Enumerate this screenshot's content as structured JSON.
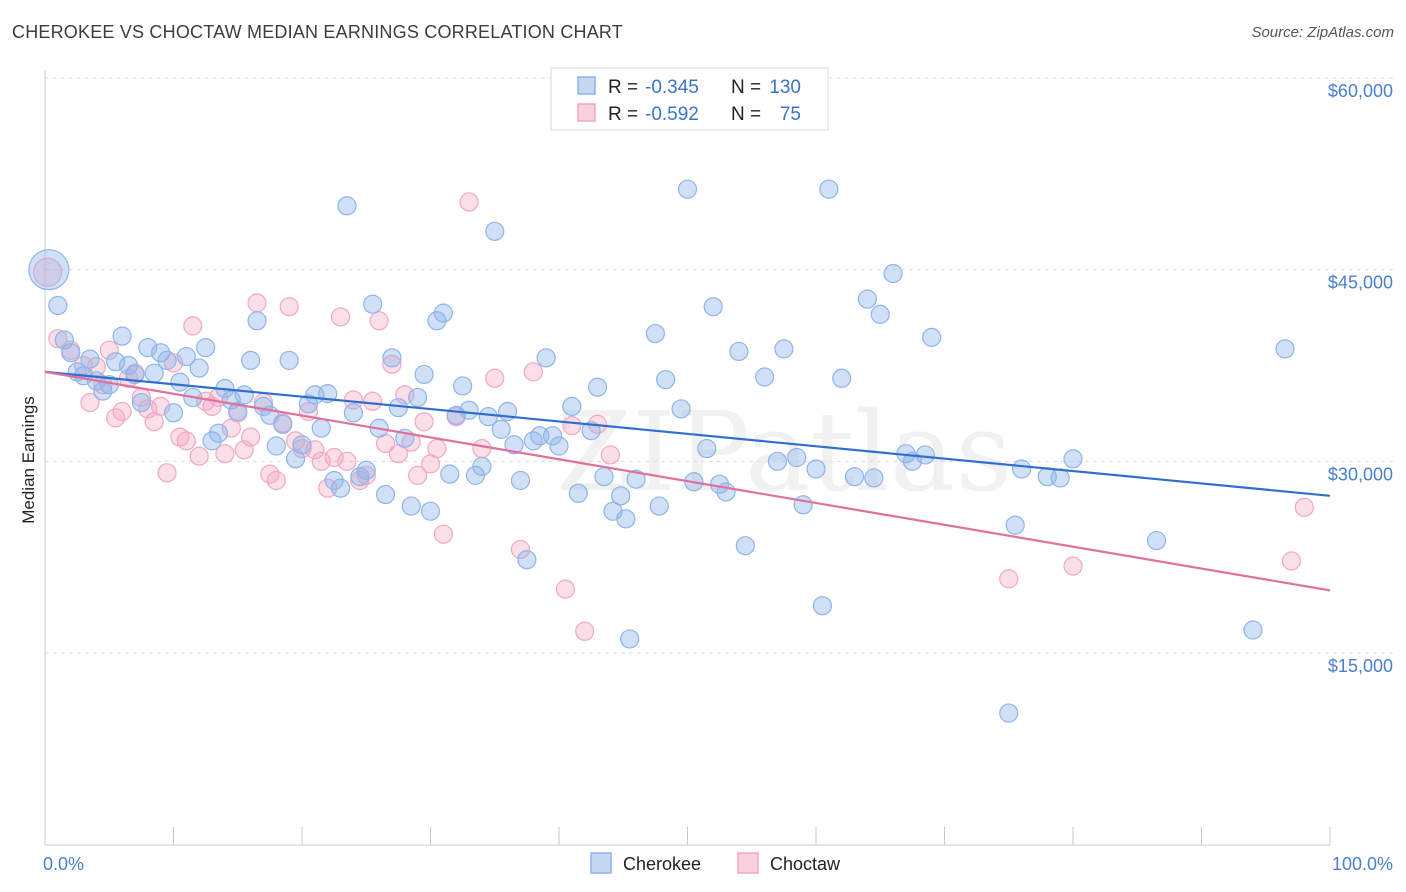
{
  "title": "CHEROKEE VS CHOCTAW MEDIAN EARNINGS CORRELATION CHART",
  "source": "Source: ZipAtlas.com",
  "watermark": "ZIPatlas",
  "colors": {
    "cherokee": "#8fb4ea",
    "choctaw": "#f3a7c2",
    "cherokee_line": "#2f6fce",
    "choctaw_line": "#e0719a"
  },
  "legend": {
    "r_label": "R =",
    "n_label": "N =",
    "cherokee": {
      "r": "-0.345",
      "n": "130"
    },
    "choctaw": {
      "r": "-0.592",
      "n": "75"
    }
  },
  "bottom_legend": [
    "Cherokee",
    "Choctaw"
  ],
  "chart_data": {
    "type": "scatter",
    "title": "CHEROKEE VS CHOCTAW MEDIAN EARNINGS CORRELATION CHART",
    "xlabel": "",
    "ylabel": "Median Earnings",
    "xlim": [
      0,
      100
    ],
    "ylim": [
      0,
      62500
    ],
    "x_tick_labels": [
      "0.0%",
      "100.0%"
    ],
    "y_ticks": [
      15000,
      30000,
      45000,
      60000
    ],
    "y_tick_labels": [
      "$15,000",
      "$30,000",
      "$45,000",
      "$60,000"
    ],
    "grid": true,
    "series": [
      {
        "name": "Cherokee",
        "trend": {
          "x": [
            0,
            100
          ],
          "y": [
            37000,
            27300
          ]
        },
        "points": [
          [
            0.3,
            45000
          ],
          [
            1,
            42200
          ],
          [
            1.5,
            39500
          ],
          [
            2,
            38500
          ],
          [
            2.5,
            37000
          ],
          [
            3,
            36700
          ],
          [
            3.5,
            38000
          ],
          [
            4,
            36300
          ],
          [
            4.5,
            35500
          ],
          [
            5,
            36000
          ],
          [
            5.5,
            37800
          ],
          [
            6,
            39800
          ],
          [
            6.5,
            37500
          ],
          [
            7,
            36800
          ],
          [
            7.5,
            34600
          ],
          [
            8,
            38900
          ],
          [
            8.5,
            36900
          ],
          [
            9,
            38500
          ],
          [
            9.5,
            37900
          ],
          [
            10,
            33800
          ],
          [
            10.5,
            36200
          ],
          [
            11,
            38200
          ],
          [
            11.5,
            35000
          ],
          [
            12,
            37300
          ],
          [
            12.5,
            38900
          ],
          [
            13,
            31600
          ],
          [
            13.5,
            32200
          ],
          [
            14,
            35700
          ],
          [
            14.5,
            34800
          ],
          [
            15,
            33900
          ],
          [
            15.5,
            35200
          ],
          [
            16,
            37900
          ],
          [
            16.5,
            41000
          ],
          [
            17,
            34300
          ],
          [
            17.5,
            33600
          ],
          [
            18,
            31200
          ],
          [
            18.5,
            32900
          ],
          [
            19,
            37900
          ],
          [
            19.5,
            30200
          ],
          [
            20,
            31300
          ],
          [
            20.5,
            34500
          ],
          [
            21,
            35200
          ],
          [
            21.5,
            32600
          ],
          [
            22,
            35300
          ],
          [
            22.5,
            28500
          ],
          [
            23,
            27900
          ],
          [
            23.5,
            50000
          ],
          [
            24,
            33800
          ],
          [
            24.5,
            28800
          ],
          [
            25,
            29300
          ],
          [
            25.5,
            42300
          ],
          [
            26,
            32600
          ],
          [
            26.5,
            27400
          ],
          [
            27,
            38100
          ],
          [
            27.5,
            34200
          ],
          [
            28,
            31800
          ],
          [
            28.5,
            26500
          ],
          [
            29,
            35000
          ],
          [
            29.5,
            36800
          ],
          [
            30,
            26100
          ],
          [
            30.5,
            41000
          ],
          [
            31,
            41600
          ],
          [
            31.5,
            29000
          ],
          [
            32,
            33600
          ],
          [
            32.5,
            35900
          ],
          [
            33,
            34000
          ],
          [
            33.5,
            28900
          ],
          [
            34,
            29600
          ],
          [
            34.5,
            33500
          ],
          [
            35,
            48000
          ],
          [
            35.5,
            32500
          ],
          [
            36,
            33900
          ],
          [
            36.5,
            31300
          ],
          [
            37,
            28500
          ],
          [
            37.5,
            22300
          ],
          [
            38,
            31600
          ],
          [
            38.5,
            32000
          ],
          [
            39,
            38100
          ],
          [
            39.5,
            32000
          ],
          [
            40,
            31200
          ],
          [
            41,
            34300
          ],
          [
            41.5,
            27500
          ],
          [
            42.5,
            32400
          ],
          [
            43,
            35800
          ],
          [
            43.5,
            28800
          ],
          [
            44.2,
            26100
          ],
          [
            44.8,
            27300
          ],
          [
            45.2,
            25500
          ],
          [
            45.5,
            16100
          ],
          [
            46,
            28600
          ],
          [
            47.5,
            40000
          ],
          [
            47.8,
            26500
          ],
          [
            48.3,
            36400
          ],
          [
            49.5,
            34100
          ],
          [
            50,
            51300
          ],
          [
            50.5,
            28400
          ],
          [
            51.5,
            31000
          ],
          [
            52,
            42100
          ],
          [
            52.5,
            28200
          ],
          [
            53,
            27600
          ],
          [
            54,
            38600
          ],
          [
            54.5,
            23400
          ],
          [
            56,
            36600
          ],
          [
            57,
            30000
          ],
          [
            57.5,
            38800
          ],
          [
            58.5,
            30300
          ],
          [
            59,
            26600
          ],
          [
            60,
            29400
          ],
          [
            60.5,
            18700
          ],
          [
            61,
            51300
          ],
          [
            62,
            36500
          ],
          [
            63,
            28800
          ],
          [
            64,
            42700
          ],
          [
            64.5,
            28700
          ],
          [
            65,
            41500
          ],
          [
            66,
            44700
          ],
          [
            67,
            30600
          ],
          [
            67.5,
            30000
          ],
          [
            68.5,
            30500
          ],
          [
            69,
            39700
          ],
          [
            75,
            10300
          ],
          [
            75.5,
            25000
          ],
          [
            76,
            29400
          ],
          [
            78,
            28800
          ],
          [
            79,
            28700
          ],
          [
            80,
            30200
          ],
          [
            86.5,
            23800
          ],
          [
            94,
            16800
          ],
          [
            96.5,
            38800
          ]
        ]
      },
      {
        "name": "Choctaw",
        "trend": {
          "x": [
            0,
            100
          ],
          "y": [
            37000,
            19900
          ]
        },
        "points": [
          [
            0.2,
            44800
          ],
          [
            1,
            39600
          ],
          [
            2,
            38700
          ],
          [
            3,
            37500
          ],
          [
            3.5,
            34600
          ],
          [
            4,
            37400
          ],
          [
            4.5,
            36000
          ],
          [
            5,
            38700
          ],
          [
            5.5,
            33400
          ],
          [
            6,
            33900
          ],
          [
            6.5,
            36500
          ],
          [
            7,
            36900
          ],
          [
            7.5,
            35000
          ],
          [
            8,
            34100
          ],
          [
            8.5,
            33100
          ],
          [
            9,
            34300
          ],
          [
            9.5,
            29100
          ],
          [
            10,
            37700
          ],
          [
            10.5,
            31900
          ],
          [
            11,
            31600
          ],
          [
            11.5,
            40600
          ],
          [
            12,
            30400
          ],
          [
            12.5,
            34700
          ],
          [
            13,
            34300
          ],
          [
            13.5,
            35000
          ],
          [
            14,
            30600
          ],
          [
            14.5,
            32600
          ],
          [
            15,
            33800
          ],
          [
            15.5,
            30900
          ],
          [
            16,
            31900
          ],
          [
            16.5,
            42400
          ],
          [
            17,
            34600
          ],
          [
            17.5,
            29000
          ],
          [
            18,
            28500
          ],
          [
            18.5,
            33000
          ],
          [
            19,
            42100
          ],
          [
            19.5,
            31600
          ],
          [
            20,
            31000
          ],
          [
            20.5,
            33900
          ],
          [
            21,
            30900
          ],
          [
            21.5,
            30000
          ],
          [
            22,
            27900
          ],
          [
            22.5,
            30300
          ],
          [
            23,
            41300
          ],
          [
            23.5,
            30000
          ],
          [
            24,
            34800
          ],
          [
            24.5,
            28500
          ],
          [
            25,
            28900
          ],
          [
            25.5,
            34700
          ],
          [
            26,
            41000
          ],
          [
            26.5,
            31400
          ],
          [
            27,
            37600
          ],
          [
            27.5,
            30600
          ],
          [
            28,
            35200
          ],
          [
            28.5,
            31500
          ],
          [
            29,
            28900
          ],
          [
            29.5,
            33100
          ],
          [
            30,
            29800
          ],
          [
            30.5,
            31000
          ],
          [
            31,
            24300
          ],
          [
            32,
            33500
          ],
          [
            33,
            50300
          ],
          [
            34,
            31000
          ],
          [
            35,
            36500
          ],
          [
            37,
            23100
          ],
          [
            38,
            37000
          ],
          [
            40.5,
            20000
          ],
          [
            41,
            32800
          ],
          [
            42,
            16700
          ],
          [
            43,
            32900
          ],
          [
            44,
            30500
          ],
          [
            75,
            20800
          ],
          [
            80,
            21800
          ],
          [
            97,
            22200
          ],
          [
            98,
            26400
          ]
        ]
      }
    ]
  }
}
